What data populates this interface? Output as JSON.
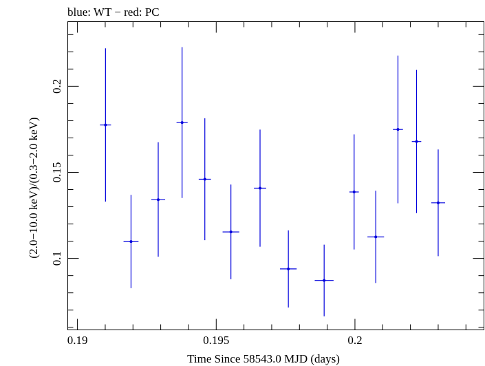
{
  "chart_data": {
    "type": "scatter",
    "title": "blue: WT − red: PC",
    "xlabel": "Time Since 58543.0 MJD (days)",
    "ylabel": "(2.0−10.0 keV)/(0.3−2.0 keV)",
    "xlim": [
      0.18965,
      0.20465
    ],
    "ylim": [
      0.0585,
      0.2375
    ],
    "x_ticks": [
      {
        "value": 0.19,
        "label": "0.19"
      },
      {
        "value": 0.195,
        "label": "0.195"
      },
      {
        "value": 0.2,
        "label": "0.2"
      }
    ],
    "y_ticks": [
      {
        "value": 0.1,
        "label": "0.1"
      },
      {
        "value": 0.15,
        "label": "0.15"
      },
      {
        "value": 0.2,
        "label": "0.2"
      }
    ],
    "grid": false,
    "series": [
      {
        "color": "#0000dd",
        "points": [
          {
            "x": 0.19101,
            "xerr": 0.0002,
            "y": 0.1775,
            "ylo": 0.133,
            "yhi": 0.222
          },
          {
            "x": 0.19193,
            "xerr": 0.00027,
            "y": 0.1098,
            "ylo": 0.0827,
            "yhi": 0.1369
          },
          {
            "x": 0.19291,
            "xerr": 0.00025,
            "y": 0.1341,
            "ylo": 0.101,
            "yhi": 0.1675
          },
          {
            "x": 0.19377,
            "xerr": 0.0002,
            "y": 0.1789,
            "ylo": 0.1351,
            "yhi": 0.2227
          },
          {
            "x": 0.19459,
            "xerr": 0.00022,
            "y": 0.146,
            "ylo": 0.1106,
            "yhi": 0.1814
          },
          {
            "x": 0.19553,
            "xerr": 0.0003,
            "y": 0.1154,
            "ylo": 0.0879,
            "yhi": 0.1429
          },
          {
            "x": 0.19658,
            "xerr": 0.00022,
            "y": 0.1408,
            "ylo": 0.1068,
            "yhi": 0.1748
          },
          {
            "x": 0.1976,
            "xerr": 0.0003,
            "y": 0.0939,
            "ylo": 0.0715,
            "yhi": 0.1163
          },
          {
            "x": 0.19889,
            "xerr": 0.00034,
            "y": 0.0872,
            "ylo": 0.0664,
            "yhi": 0.108
          },
          {
            "x": 0.19997,
            "xerr": 0.00017,
            "y": 0.1386,
            "ylo": 0.1052,
            "yhi": 0.172
          },
          {
            "x": 0.20075,
            "xerr": 0.0003,
            "y": 0.1125,
            "ylo": 0.0857,
            "yhi": 0.1393
          },
          {
            "x": 0.20155,
            "xerr": 0.00018,
            "y": 0.1749,
            "ylo": 0.132,
            "yhi": 0.2178
          },
          {
            "x": 0.20222,
            "xerr": 0.00017,
            "y": 0.1679,
            "ylo": 0.1263,
            "yhi": 0.2095
          },
          {
            "x": 0.203,
            "xerr": 0.00025,
            "y": 0.1323,
            "ylo": 0.1013,
            "yhi": 0.1633
          }
        ]
      }
    ]
  }
}
